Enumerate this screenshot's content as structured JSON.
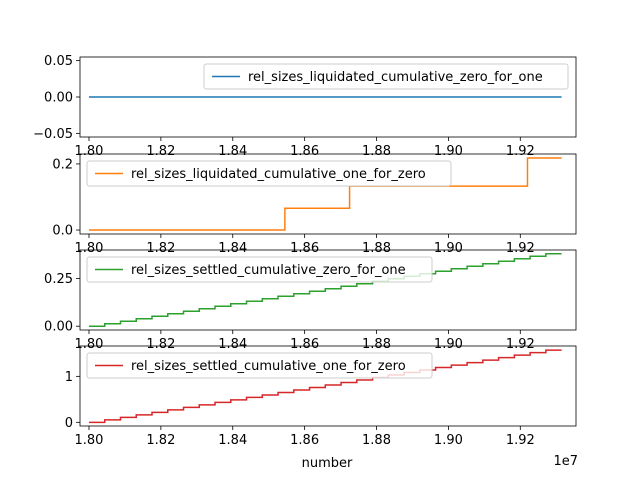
{
  "figure": {
    "xlabel": "number",
    "x_offset_text": "1e7"
  },
  "chart_data": [
    {
      "type": "line",
      "series": [
        {
          "name": "rel_sizes_liquidated_cumulative_zero_for_one",
          "color": "#1f77b4",
          "x": [
            18000000,
            19315000
          ],
          "y": [
            0.0,
            0.0
          ]
        }
      ],
      "xlim": [
        17975000,
        19355000
      ],
      "ylim": [
        -0.055,
        0.055
      ],
      "x_ticks": [
        1.8,
        1.82,
        1.84,
        1.86,
        1.88,
        1.9,
        1.92
      ],
      "x_tick_labels": [
        "1.80",
        "1.82",
        "1.84",
        "1.86",
        "1.88",
        "1.90",
        "1.92"
      ],
      "y_ticks": [
        0.05,
        0.0,
        -0.05
      ],
      "y_tick_labels": [
        "0.05",
        "0.00",
        "−0.05"
      ],
      "legend_position": "top-right",
      "grid": false
    },
    {
      "type": "line",
      "series": [
        {
          "name": "rel_sizes_liquidated_cumulative_one_for_zero",
          "color": "#ff7f0e",
          "x": [
            18000000,
            18545000,
            18545000,
            18725000,
            18725000,
            19220000,
            19220000,
            19315000
          ],
          "y": [
            0.0,
            0.0,
            0.066,
            0.066,
            0.133,
            0.133,
            0.218,
            0.218
          ]
        }
      ],
      "xlim": [
        17975000,
        19355000
      ],
      "ylim": [
        -0.012,
        0.23
      ],
      "x_ticks": [
        1.8,
        1.82,
        1.84,
        1.86,
        1.88,
        1.9,
        1.92
      ],
      "x_tick_labels": [
        "1.80",
        "1.82",
        "1.84",
        "1.86",
        "1.88",
        "1.90",
        "1.92"
      ],
      "y_ticks": [
        0.2,
        0.0
      ],
      "y_tick_labels": [
        "0.2",
        "0.0"
      ],
      "legend_position": "top-left",
      "grid": false
    },
    {
      "type": "line",
      "step": true,
      "series": [
        {
          "name": "rel_sizes_settled_cumulative_zero_for_one",
          "color": "#2ca02c",
          "steps": {
            "x_start": 18000000,
            "x_end": 19315000,
            "count": 30,
            "y_start": 0.0,
            "y_end": 0.38
          }
        }
      ],
      "xlim": [
        17975000,
        19355000
      ],
      "ylim": [
        -0.02,
        0.4
      ],
      "x_ticks": [
        1.8,
        1.82,
        1.84,
        1.86,
        1.88,
        1.9,
        1.92
      ],
      "x_tick_labels": [
        "1.80",
        "1.82",
        "1.84",
        "1.86",
        "1.88",
        "1.90",
        "1.92"
      ],
      "y_ticks": [
        0.25,
        0.0
      ],
      "y_tick_labels": [
        "0.25",
        "0.00"
      ],
      "legend_position": "top-left",
      "grid": false
    },
    {
      "type": "line",
      "step": true,
      "series": [
        {
          "name": "rel_sizes_settled_cumulative_one_for_zero",
          "color": "#d62728",
          "steps": {
            "x_start": 18000000,
            "x_end": 19315000,
            "count": 30,
            "y_start": 0.0,
            "y_end": 1.57
          }
        }
      ],
      "xlim": [
        17975000,
        19355000
      ],
      "ylim": [
        -0.08,
        1.66
      ],
      "x_ticks": [
        1.8,
        1.82,
        1.84,
        1.86,
        1.88,
        1.9,
        1.92
      ],
      "x_tick_labels": [
        "1.80",
        "1.82",
        "1.84",
        "1.86",
        "1.88",
        "1.90",
        "1.92"
      ],
      "y_ticks": [
        1.0,
        0.0
      ],
      "y_tick_labels": [
        "1",
        "0"
      ],
      "legend_position": "top-left",
      "grid": false
    }
  ]
}
